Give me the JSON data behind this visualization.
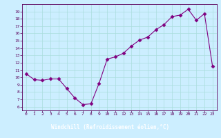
{
  "x_data": [
    0,
    1,
    2,
    3,
    4,
    5,
    6,
    7,
    8,
    9,
    10,
    11,
    12,
    13,
    14,
    15,
    16,
    17,
    18,
    19,
    20,
    21,
    22,
    23
  ],
  "y_data": [
    10.5,
    9.7,
    9.6,
    9.8,
    9.8,
    8.5,
    7.2,
    6.3,
    6.4,
    9.2,
    12.5,
    12.8,
    13.3,
    14.3,
    15.1,
    15.5,
    16.5,
    17.2,
    18.3,
    18.5,
    19.3,
    17.8,
    18.7,
    11.5
  ],
  "line_color": "#800080",
  "marker": "D",
  "marker_size": 2.5,
  "bg_color": "#cceeff",
  "grid_color": "#aadddd",
  "xlabel": "Windchill (Refroidissement éolien,°C)",
  "xlabel_bg": "#7b007b",
  "xlabel_fg": "#ffffff",
  "ylim_min": 5.5,
  "ylim_max": 20,
  "yticks": [
    6,
    7,
    8,
    9,
    10,
    11,
    12,
    13,
    14,
    15,
    16,
    17,
    18,
    19
  ],
  "xlim_min": -0.5,
  "xlim_max": 23.5,
  "xticks": [
    0,
    1,
    2,
    3,
    4,
    5,
    6,
    7,
    8,
    9,
    10,
    11,
    12,
    13,
    14,
    15,
    16,
    17,
    18,
    19,
    20,
    21,
    22,
    23
  ],
  "tick_color": "#5b005b",
  "spine_color": "#5b005b"
}
